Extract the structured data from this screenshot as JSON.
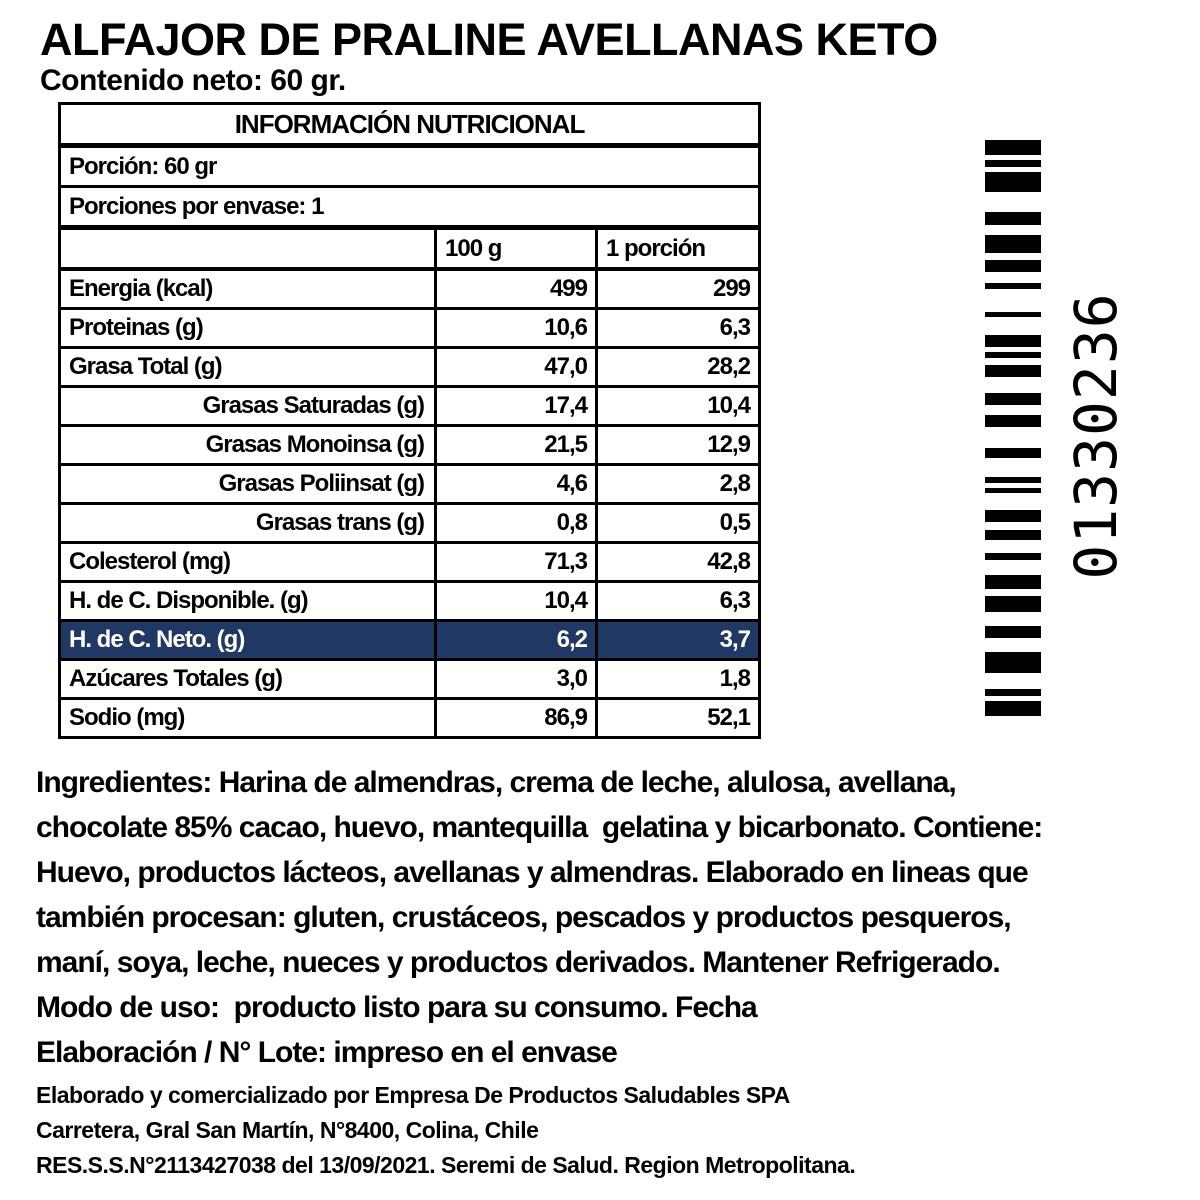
{
  "product": {
    "title": "ALFAJOR DE PRALINE AVELLANAS KETO",
    "net_content": "Contenido neto: 60 gr."
  },
  "nutrition_table": {
    "title": "INFORMACIÓN NUTRICIONAL",
    "portion": "Porción: 60 gr",
    "portions_per_package": "Porciones por envase: 1",
    "columns": {
      "per_100g": "100 g",
      "per_portion": "1 porción"
    },
    "highlight_row_color": "#1f3864",
    "rows": [
      {
        "label": "Energia (kcal)",
        "per_100g": "499",
        "per_portion": "299"
      },
      {
        "label": "Proteinas (g)",
        "per_100g": "10,6",
        "per_portion": "6,3"
      },
      {
        "label": "Grasa Total (g)",
        "per_100g": "47,0",
        "per_portion": "28,2"
      },
      {
        "label": "Grasas Saturadas (g)",
        "per_100g": "17,4",
        "per_portion": "10,4"
      },
      {
        "label": "Grasas Monoinsa (g)",
        "per_100g": "21,5",
        "per_portion": "12,9"
      },
      {
        "label": "Grasas Poliinsat (g)",
        "per_100g": "4,6",
        "per_portion": "2,8"
      },
      {
        "label": "Grasas trans (g)",
        "per_100g": "0,8",
        "per_portion": "0,5"
      },
      {
        "label": "Colesterol (mg)",
        "per_100g": "71,3",
        "per_portion": "42,8"
      },
      {
        "label": "H. de C. Disponible. (g)",
        "per_100g": "10,4",
        "per_portion": "6,3"
      },
      {
        "label": "H. de C. Neto. (g)",
        "per_100g": "6,2",
        "per_portion": "3,7"
      },
      {
        "label": "Azúcares Totales (g)",
        "per_100g": "3,0",
        "per_portion": "1,8"
      },
      {
        "label": "Sodio (mg)",
        "per_100g": "86,9",
        "per_portion": "52,1"
      }
    ]
  },
  "barcode": {
    "number": "01330236",
    "bars": [
      [
        15,
        5
      ],
      [
        7,
        5
      ],
      [
        20,
        20
      ],
      [
        13,
        10
      ],
      [
        18,
        7
      ],
      [
        12,
        11
      ],
      [
        6,
        23
      ],
      [
        5,
        18
      ],
      [
        12,
        5
      ],
      [
        6,
        7
      ],
      [
        12,
        16
      ],
      [
        12,
        10
      ],
      [
        12,
        21
      ],
      [
        10,
        19
      ],
      [
        6,
        5
      ],
      [
        5,
        17
      ],
      [
        12,
        8
      ],
      [
        10,
        13
      ],
      [
        7,
        15
      ],
      [
        14,
        7
      ],
      [
        16,
        14
      ],
      [
        12,
        14
      ],
      [
        21,
        16
      ],
      [
        7,
        5
      ],
      [
        15,
        0
      ]
    ]
  },
  "body_text": {
    "lines": [
      "Ingredientes: Harina de almendras, crema de leche, alulosa, avellana,",
      "chocolate 85% cacao, huevo, mantequilla  gelatina y bicarbonato. Contiene:",
      "Huevo, productos lácteos, avellanas y almendras. Elaborado en lineas que",
      "también procesan: gluten, crustáceos, pescados y productos pesqueros,",
      "maní, soya, leche, nueces y productos derivados. Mantener Refrigerado.",
      "Modo de uso:  producto listo para su consumo. Fecha",
      "Elaboración / N° Lote: impreso en el envase"
    ]
  },
  "footer": {
    "lines": [
      "Elaborado y comercializado por Empresa De Productos Saludables SPA",
      "Carretera, Gral San Martín, N°8400, Colina, Chile",
      "RES.S.S.N°2113427038 del 13/09/2021. Seremi de Salud. Region Metropolitana."
    ]
  }
}
